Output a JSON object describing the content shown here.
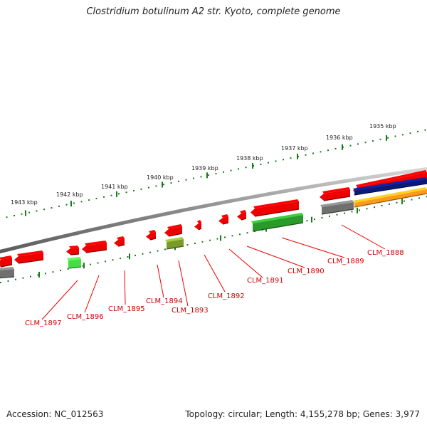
{
  "title": "Clostridium botulinum A2 str. Kyoto, complete genome",
  "footer": {
    "accession": "Accession: NC_012563",
    "summary": "Topology: circular; Length: 4,155,278 bp; Genes: 3,977"
  },
  "colors": {
    "backbone": "#8a8a8a",
    "forward_cds": "#ee0000",
    "reverse_cds": "#ee0000",
    "gene_green": "#2a9a2a",
    "gene_lightgreen": "#44dd44",
    "gene_olive": "#7a9a2a",
    "gene_gray": "#707070",
    "track_navy": "#0a1a7a",
    "track_orange": "#ff9a1a",
    "tick_green": "#1a7a1a",
    "label_red": "#cc0000",
    "leader_red": "#ee0000"
  },
  "ruler": {
    "ticks": [
      "1935 kbp",
      "1936 kbp",
      "1937 kbp",
      "1938 kbp",
      "1939 kbp",
      "1940 kbp",
      "1941 kbp",
      "1942 kbp",
      "1943 kbp"
    ]
  },
  "gene_labels": [
    "CLM_1888",
    "CLM_1889",
    "CLM_1890",
    "CLM_1891",
    "CLM_1892",
    "CLM_1893",
    "CLM_1894",
    "CLM_1895",
    "CLM_1896",
    "CLM_1897"
  ]
}
